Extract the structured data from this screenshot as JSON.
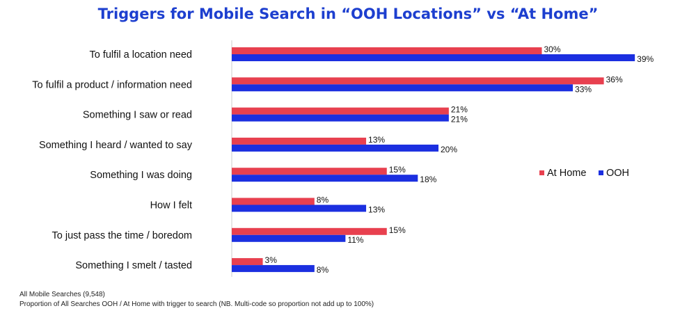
{
  "title": "Triggers for Mobile Search in “OOH Locations” vs “At Home”",
  "footnotes": [
    "All Mobile Searches (9,548)",
    "Proportion of All Searches OOH / At Home with trigger to search (NB. Multi-code so proportion not add up to 100%)"
  ],
  "colors": {
    "at_home": "#e8404f",
    "ooh": "#1b2fe0",
    "title": "#1d3fcf",
    "axis": "#cccccc"
  },
  "chart_data": {
    "type": "bar",
    "orientation": "horizontal",
    "categories": [
      "To fulfil a location need",
      "To fulfil a product / information need",
      "Something I saw or read",
      "Something I heard / wanted to say",
      "Something I was doing",
      "How I felt",
      "To just pass the time / boredom",
      "Something I smelt / tasted"
    ],
    "series": [
      {
        "name": "At Home",
        "values": [
          30,
          36,
          21,
          13,
          15,
          8,
          15,
          3
        ],
        "labels": [
          "30%",
          "36%",
          "21%",
          "13%",
          "15%",
          "8%",
          "15%",
          "3%"
        ]
      },
      {
        "name": "OOH",
        "values": [
          39,
          33,
          21,
          20,
          18,
          13,
          11,
          8
        ],
        "labels": [
          "39%",
          "33%",
          "21%",
          "20%",
          "18%",
          "13%",
          "11%",
          "8%"
        ]
      }
    ],
    "xlim": [
      0,
      40
    ],
    "grid": false,
    "legend_position": "right"
  }
}
